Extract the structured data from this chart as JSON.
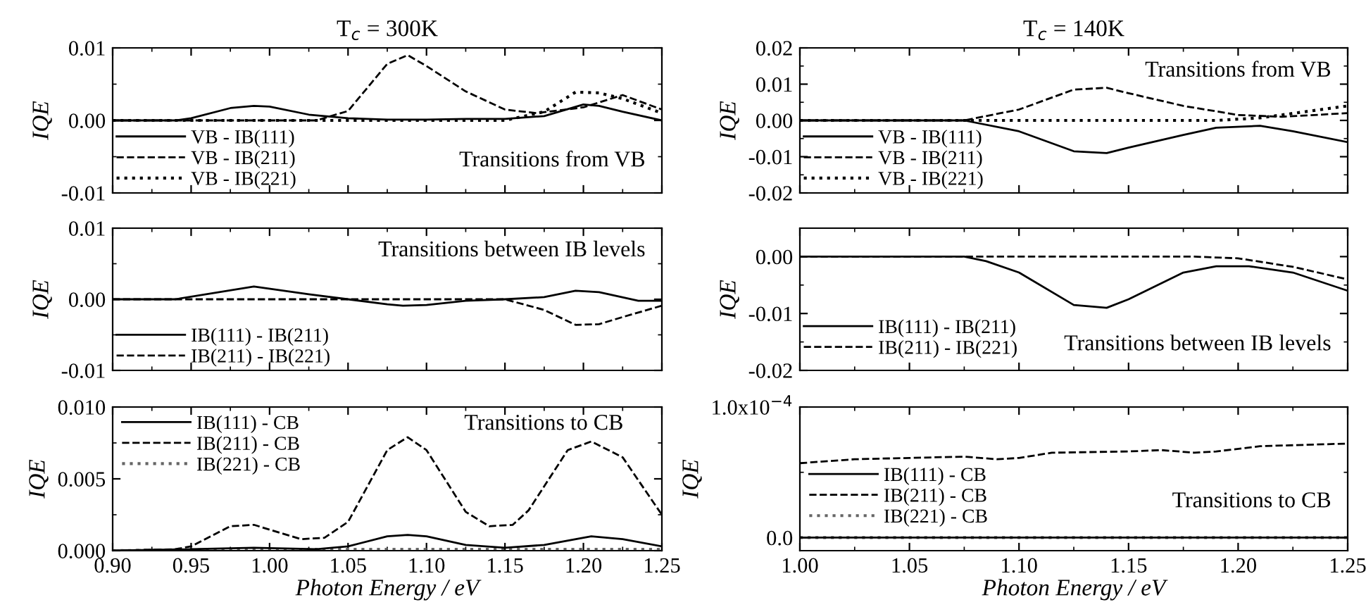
{
  "chart_data": [
    {
      "type": "line",
      "title": "T$_{c}$ = 300K",
      "ylabel": "IQE",
      "xlim": [
        0.9,
        1.25
      ],
      "xticks": [
        {
          "value": 0.9,
          "label": null
        },
        {
          "value": 0.95,
          "label": null
        },
        {
          "value": 1.0,
          "label": null
        },
        {
          "value": 1.05,
          "label": null
        },
        {
          "value": 1.1,
          "label": null
        },
        {
          "value": 1.15,
          "label": null
        },
        {
          "value": 1.2,
          "label": null
        },
        {
          "value": 1.25,
          "label": null
        }
      ],
      "ylim": [
        -0.01,
        0.01
      ],
      "yticks": [
        {
          "value": -0.01,
          "label": "-0.01"
        },
        {
          "value": 0,
          "label": "0.00"
        },
        {
          "value": 0.01,
          "label": "0.01"
        }
      ],
      "tick_labels": "y",
      "legend": "bottom left",
      "grid": false,
      "annotations": [
        "Transitions from VB"
      ],
      "series": [
        {
          "name": "VB - IB(111)",
          "color": "#000000",
          "line_style": "solid",
          "x": [
            0.9,
            0.94,
            0.95,
            0.975,
            0.99,
            1.0,
            1.025,
            1.05,
            1.075,
            1.1,
            1.125,
            1.15,
            1.175,
            1.2,
            1.21,
            1.225,
            1.25
          ],
          "values": [
            0,
            0,
            0.0003,
            0.0017,
            0.002,
            0.0019,
            0.0008,
            0.0003,
            0.0001,
            0.0001,
            0.0002,
            0.0002,
            0.0006,
            0.0022,
            0.002,
            0.0012,
            0
          ]
        },
        {
          "name": "VB - IB(211)",
          "color": "#000000",
          "line_style": "dashed",
          "x": [
            0.9,
            1.03,
            1.05,
            1.075,
            1.088,
            1.1,
            1.125,
            1.15,
            1.17,
            1.2,
            1.225,
            1.25
          ],
          "values": [
            0,
            0,
            0.0013,
            0.0078,
            0.009,
            0.0075,
            0.004,
            0.0015,
            0.001,
            0.0018,
            0.0035,
            0.0015
          ]
        },
        {
          "name": "VB - IB(221)",
          "color": "#000000",
          "line_style": "dotted",
          "x": [
            0.9,
            1.15,
            1.175,
            1.195,
            1.21,
            1.225,
            1.25
          ],
          "values": [
            0,
            0,
            0.0012,
            0.0039,
            0.0038,
            0.003,
            0.001
          ]
        }
      ]
    },
    {
      "type": "line",
      "title": "T$_{c}$ = 140K",
      "ylabel": "IQE",
      "xlim": [
        1.0,
        1.25
      ],
      "xticks": [
        {
          "value": 1.0,
          "label": null
        },
        {
          "value": 1.05,
          "label": null
        },
        {
          "value": 1.1,
          "label": null
        },
        {
          "value": 1.15,
          "label": null
        },
        {
          "value": 1.2,
          "label": null
        },
        {
          "value": 1.25,
          "label": null
        }
      ],
      "ylim": [
        -0.02,
        0.02
      ],
      "yticks": [
        {
          "value": -0.02,
          "label": "-0.02"
        },
        {
          "value": -0.01,
          "label": "-0.01"
        },
        {
          "value": 0,
          "label": "0.00"
        },
        {
          "value": 0.01,
          "label": "0.01"
        },
        {
          "value": 0.02,
          "label": "0.02"
        }
      ],
      "tick_labels": "y",
      "legend": "bottom left",
      "grid": false,
      "annotations": [
        "Transitions from VB"
      ],
      "series": [
        {
          "name": "VB - IB(111)",
          "color": "#000000",
          "line_style": "solid",
          "x": [
            1.0,
            1.075,
            1.1,
            1.125,
            1.14,
            1.15,
            1.175,
            1.19,
            1.21,
            1.225,
            1.25
          ],
          "values": [
            0,
            0,
            -0.003,
            -0.0085,
            -0.009,
            -0.0075,
            -0.004,
            -0.002,
            -0.0015,
            -0.003,
            -0.006
          ]
        },
        {
          "name": "VB - IB(211)",
          "color": "#000000",
          "line_style": "dashed",
          "x": [
            1.0,
            1.075,
            1.1,
            1.125,
            1.14,
            1.15,
            1.175,
            1.2,
            1.22,
            1.25
          ],
          "values": [
            0,
            0,
            0.003,
            0.0085,
            0.009,
            0.0075,
            0.004,
            0.0015,
            0.001,
            0.002
          ]
        },
        {
          "name": "VB - IB(221)",
          "color": "#000000",
          "line_style": "dotted",
          "x": [
            1.0,
            1.19,
            1.21,
            1.25
          ],
          "values": [
            0,
            0,
            0.0007,
            0.004
          ]
        }
      ]
    },
    {
      "type": "line",
      "ylabel": "IQE",
      "xlim": [
        0.9,
        1.25
      ],
      "xticks": [
        {
          "value": 0.9,
          "label": null
        },
        {
          "value": 0.95,
          "label": null
        },
        {
          "value": 1.0,
          "label": null
        },
        {
          "value": 1.05,
          "label": null
        },
        {
          "value": 1.1,
          "label": null
        },
        {
          "value": 1.15,
          "label": null
        },
        {
          "value": 1.2,
          "label": null
        },
        {
          "value": 1.25,
          "label": null
        }
      ],
      "ylim": [
        -0.01,
        0.01
      ],
      "yticks": [
        {
          "value": -0.01,
          "label": "-0.01"
        },
        {
          "value": 0,
          "label": "0.00"
        },
        {
          "value": 0.01,
          "label": "0.01"
        }
      ],
      "tick_labels": "y",
      "legend": "bottom left",
      "grid": false,
      "annotations": [
        "Transitions between IB levels"
      ],
      "series": [
        {
          "name": "IB(111) - IB(211)",
          "color": "#000000",
          "line_style": "solid",
          "x": [
            0.9,
            0.94,
            0.99,
            1.025,
            1.05,
            1.075,
            1.085,
            1.1,
            1.125,
            1.15,
            1.175,
            1.195,
            1.21,
            1.235,
            1.25
          ],
          "values": [
            0,
            0,
            0.0018,
            0.0007,
            0,
            -0.0007,
            -0.0009,
            -0.0008,
            -0.0002,
            0,
            0.0003,
            0.0012,
            0.001,
            -0.0002,
            -0.0002
          ]
        },
        {
          "name": "IB(211) - IB(221)",
          "color": "#000000",
          "line_style": "dashed",
          "x": [
            0.9,
            1.15,
            1.175,
            1.195,
            1.21,
            1.225,
            1.25
          ],
          "values": [
            0,
            0,
            -0.0015,
            -0.0036,
            -0.0035,
            -0.0025,
            -0.0009
          ]
        }
      ]
    },
    {
      "type": "line",
      "ylabel": "IQE",
      "xlim": [
        1.0,
        1.25
      ],
      "xticks": [
        {
          "value": 1.0,
          "label": null
        },
        {
          "value": 1.05,
          "label": null
        },
        {
          "value": 1.1,
          "label": null
        },
        {
          "value": 1.15,
          "label": null
        },
        {
          "value": 1.2,
          "label": null
        },
        {
          "value": 1.25,
          "label": null
        }
      ],
      "ylim": [
        -0.02,
        0.005
      ],
      "yticks": [
        {
          "value": -0.02,
          "label": "-0.02"
        },
        {
          "value": -0.01,
          "label": "-0.01"
        },
        {
          "value": 0,
          "label": "0.00"
        }
      ],
      "tick_labels": "y",
      "legend": "left",
      "grid": false,
      "annotations": [
        "Transitions between IB levels"
      ],
      "series": [
        {
          "name": "IB(111) - IB(211)",
          "color": "#000000",
          "line_style": "solid",
          "x": [
            1.0,
            1.075,
            1.085,
            1.1,
            1.125,
            1.14,
            1.15,
            1.175,
            1.19,
            1.205,
            1.225,
            1.25
          ],
          "values": [
            0,
            0,
            -0.0008,
            -0.0028,
            -0.0085,
            -0.009,
            -0.0075,
            -0.0028,
            -0.0017,
            -0.0017,
            -0.0028,
            -0.006
          ]
        },
        {
          "name": "IB(211) - IB(221)",
          "color": "#000000",
          "line_style": "dashed",
          "x": [
            1.0,
            1.18,
            1.2,
            1.225,
            1.25
          ],
          "values": [
            0,
            0,
            -0.0003,
            -0.0018,
            -0.004
          ]
        }
      ]
    },
    {
      "type": "line",
      "ylabel": "IQE",
      "xlabel": "Photon Energy / eV",
      "xlim": [
        0.9,
        1.25
      ],
      "xticks": [
        {
          "value": 0.9,
          "label": "0.90"
        },
        {
          "value": 0.95,
          "label": "0.95"
        },
        {
          "value": 1.0,
          "label": "1.00"
        },
        {
          "value": 1.05,
          "label": "1.05"
        },
        {
          "value": 1.1,
          "label": "1.10"
        },
        {
          "value": 1.15,
          "label": "1.15"
        },
        {
          "value": 1.2,
          "label": "1.20"
        },
        {
          "value": 1.25,
          "label": "1.25"
        }
      ],
      "ylim": [
        0,
        0.01
      ],
      "yticks": [
        {
          "value": 0,
          "label": "0.000"
        },
        {
          "value": 0.005,
          "label": "0.005"
        },
        {
          "value": 0.01,
          "label": "0.010"
        }
      ],
      "legend": "top left",
      "grid": false,
      "annotations": [
        "Transitions to CB"
      ],
      "series": [
        {
          "name": "IB(111) - CB",
          "color": "#000000",
          "line_style": "solid",
          "x": [
            0.9,
            0.95,
            0.99,
            1.03,
            1.05,
            1.075,
            1.088,
            1.1,
            1.125,
            1.15,
            1.175,
            1.205,
            1.225,
            1.25
          ],
          "values": [
            0,
            0.0001,
            0.0002,
            0.0001,
            0.0003,
            0.001,
            0.0011,
            0.001,
            0.0004,
            0.0002,
            0.0004,
            0.001,
            0.0008,
            0.0003
          ]
        },
        {
          "name": "IB(211) - CB",
          "color": "#000000",
          "line_style": "dashed",
          "x": [
            0.9,
            0.94,
            0.95,
            0.975,
            0.99,
            1.02,
            1.035,
            1.05,
            1.075,
            1.088,
            1.1,
            1.125,
            1.14,
            1.155,
            1.165,
            1.19,
            1.205,
            1.225,
            1.25
          ],
          "values": [
            0,
            0.0001,
            0.0003,
            0.0017,
            0.0018,
            0.0008,
            0.0009,
            0.002,
            0.007,
            0.0079,
            0.007,
            0.0027,
            0.0017,
            0.0018,
            0.0028,
            0.007,
            0.0076,
            0.0065,
            0.0025
          ]
        },
        {
          "name": "IB(221) - CB",
          "color": "#666666",
          "line_style": "dotted",
          "x": [
            0.9,
            1.0,
            1.1,
            1.2,
            1.25
          ],
          "values": [
            0,
            0.0001,
            0.0001,
            0.0001,
            0.0001
          ]
        }
      ]
    },
    {
      "type": "line",
      "ylabel": "IQE",
      "xlabel": "Photon Energy / eV",
      "xlim": [
        1.0,
        1.25
      ],
      "xticks": [
        {
          "value": 1.0,
          "label": "1.00"
        },
        {
          "value": 1.05,
          "label": "1.05"
        },
        {
          "value": 1.1,
          "label": "1.10"
        },
        {
          "value": 1.15,
          "label": "1.15"
        },
        {
          "value": 1.2,
          "label": "1.20"
        },
        {
          "value": 1.25,
          "label": "1.25"
        }
      ],
      "ylim": [
        -1e-05,
        0.0001
      ],
      "yticks": [
        {
          "value": 0,
          "label": "0.0"
        },
        {
          "value": 0.0001,
          "label": "1.0x10$^{−4}$"
        }
      ],
      "legend": "bottom left",
      "grid": false,
      "annotations": [
        "Transitions to CB"
      ],
      "series": [
        {
          "name": "IB(111) - CB",
          "color": "#000000",
          "line_style": "solid",
          "x": [
            1.0,
            1.25
          ],
          "values": [
            0,
            0
          ]
        },
        {
          "name": "IB(211) - CB",
          "color": "#000000",
          "line_style": "dashed",
          "x": [
            1.0,
            1.025,
            1.05,
            1.075,
            1.09,
            1.1,
            1.115,
            1.15,
            1.165,
            1.18,
            1.19,
            1.21,
            1.25
          ],
          "values": [
            5.7e-05,
            6e-05,
            6.1e-05,
            6.2e-05,
            6e-05,
            6.1e-05,
            6.5e-05,
            6.6e-05,
            6.7e-05,
            6.5e-05,
            6.6e-05,
            7e-05,
            7.2e-05
          ]
        },
        {
          "name": "IB(221) - CB",
          "color": "#666666",
          "line_style": "dotted",
          "x": [
            1.0,
            1.25
          ],
          "values": [
            0,
            0
          ]
        }
      ]
    }
  ]
}
